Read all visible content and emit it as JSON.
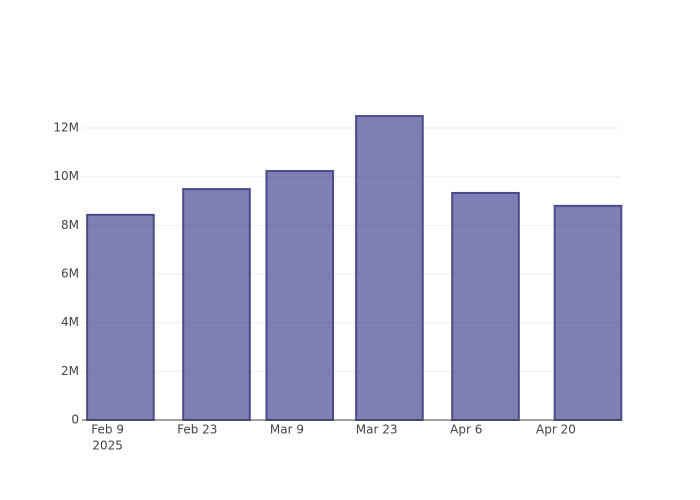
{
  "chart_data": {
    "type": "bar",
    "x": [
      "2025-02-11",
      "2025-02-26",
      "2025-03-11",
      "2025-03-25",
      "2025-04-09",
      "2025-04-25"
    ],
    "values": [
      8430000,
      9490000,
      10230000,
      12490000,
      9330000,
      8800000
    ],
    "color": "rgba(0,0,110,0.5)",
    "edge_color": "#4b4b8a",
    "xlim": [
      "2025-02-05",
      "2025-04-30"
    ],
    "xticks": [
      {
        "value": "2025-02-09",
        "label": "Feb 9"
      },
      {
        "value": "2025-02-23",
        "label": "Feb 23"
      },
      {
        "value": "2025-03-09",
        "label": "Mar 9"
      },
      {
        "value": "2025-03-23",
        "label": "Mar 23"
      },
      {
        "value": "2025-04-06",
        "label": "Apr 6"
      },
      {
        "value": "2025-04-20",
        "label": "Apr 20"
      }
    ],
    "x_year_label": "2025",
    "ylim": [
      0,
      13150000
    ],
    "yticks": [
      0,
      {
        "value": 2000000,
        "label": "2M"
      },
      {
        "value": 4000000,
        "label": "4M"
      },
      {
        "value": 6000000,
        "label": "6M"
      },
      {
        "value": 8000000,
        "label": "8M"
      },
      {
        "value": 10000000,
        "label": "10M"
      },
      {
        "value": 12000000,
        "label": "12M"
      }
    ],
    "grid": true
  }
}
